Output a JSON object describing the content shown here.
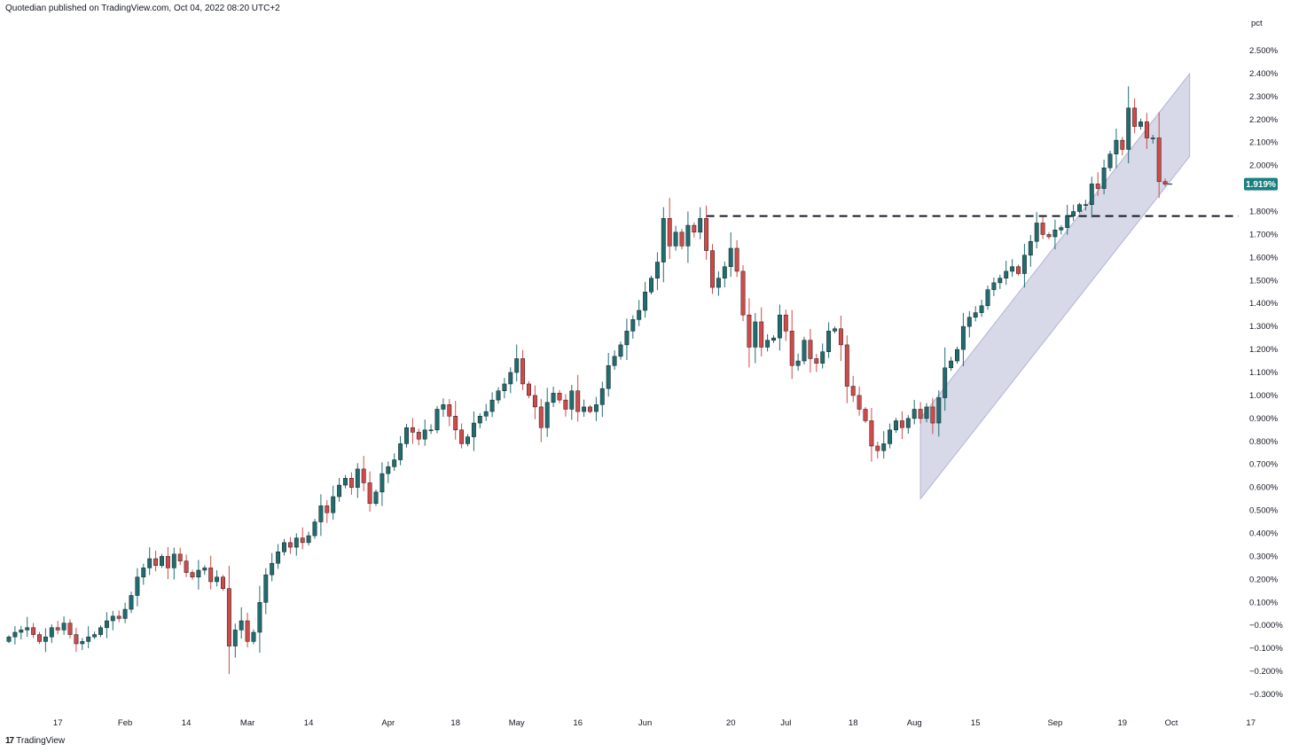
{
  "header": {
    "published": "Quotedian published on TradingView.com, Oct 04, 2022 08:20 UTC+2"
  },
  "footer": {
    "logo_mark": "17",
    "brand": "TradingView"
  },
  "chart_data": {
    "type": "candlestick",
    "y_unit_label": "pct",
    "y_range": [
      -0.35,
      2.62
    ],
    "y_ticks": [
      2.5,
      2.4,
      2.3,
      2.2,
      2.1,
      2.0,
      1.8,
      1.7,
      1.6,
      1.5,
      1.4,
      1.3,
      1.2,
      1.1,
      1.0,
      0.9,
      0.8,
      0.7,
      0.6,
      0.5,
      0.4,
      0.3,
      0.2,
      0.1,
      0.0,
      -0.1,
      -0.2,
      -0.3
    ],
    "y_tick_labels": [
      "2.500%",
      "2.400%",
      "2.300%",
      "2.200%",
      "2.100%",
      "2.000%",
      "1.800%",
      "1.700%",
      "1.600%",
      "1.500%",
      "1.400%",
      "1.300%",
      "1.200%",
      "1.100%",
      "1.000%",
      "0.900%",
      "0.800%",
      "0.700%",
      "0.600%",
      "0.500%",
      "0.400%",
      "0.300%",
      "0.200%",
      "0.100%",
      "−0.000%",
      "−0.100%",
      "−0.200%",
      "−0.300%"
    ],
    "x_tick_labels": [
      {
        "label": "17",
        "bar": 8
      },
      {
        "label": "Feb",
        "bar": 19
      },
      {
        "label": "14",
        "bar": 29
      },
      {
        "label": "Mar",
        "bar": 39
      },
      {
        "label": "14",
        "bar": 49
      },
      {
        "label": "Apr",
        "bar": 62
      },
      {
        "label": "18",
        "bar": 73
      },
      {
        "label": "May",
        "bar": 83
      },
      {
        "label": "16",
        "bar": 93
      },
      {
        "label": "Jun",
        "bar": 104
      },
      {
        "label": "20",
        "bar": 118
      },
      {
        "label": "Jul",
        "bar": 127
      },
      {
        "label": "18",
        "bar": 138
      },
      {
        "label": "Aug",
        "bar": 148
      },
      {
        "label": "15",
        "bar": 158
      },
      {
        "label": "Sep",
        "bar": 171
      },
      {
        "label": "19",
        "bar": 182
      },
      {
        "label": "Oct",
        "bar": 190
      },
      {
        "label": "17",
        "bar": 203
      }
    ],
    "last_value_label": "1.919%",
    "last_value": 1.919,
    "colors": {
      "up": "#1f6d70",
      "down": "#d14a4a",
      "channel_fill": "#c9cbe0",
      "channel_line": "#b2b5d2",
      "badge": "#1a7f80"
    },
    "resistance_level": 1.78,
    "resistance_bars": [
      114,
      201
    ],
    "channel": {
      "start_bar": 149,
      "end_bar": 193,
      "upper_start": 0.9,
      "upper_end": 2.4,
      "lower_start": 0.55,
      "lower_end": 2.04
    },
    "series": [
      {
        "name": "",
        "closes": [
          -0.05,
          -0.03,
          -0.02,
          -0.01,
          -0.04,
          -0.07,
          -0.05,
          -0.01,
          -0.02,
          0.01,
          -0.04,
          -0.08,
          -0.07,
          -0.05,
          -0.04,
          -0.01,
          0.02,
          0.04,
          0.03,
          0.07,
          0.13,
          0.21,
          0.25,
          0.29,
          0.26,
          0.3,
          0.25,
          0.31,
          0.28,
          0.23,
          0.21,
          0.24,
          0.25,
          0.19,
          0.21,
          0.16,
          -0.09,
          -0.02,
          0.02,
          -0.07,
          -0.03,
          0.1,
          0.22,
          0.27,
          0.32,
          0.36,
          0.34,
          0.38,
          0.36,
          0.39,
          0.45,
          0.52,
          0.49,
          0.56,
          0.61,
          0.64,
          0.6,
          0.68,
          0.62,
          0.53,
          0.58,
          0.66,
          0.69,
          0.72,
          0.79,
          0.86,
          0.84,
          0.81,
          0.85,
          0.85,
          0.94,
          0.96,
          0.91,
          0.85,
          0.79,
          0.82,
          0.88,
          0.91,
          0.93,
          0.98,
          1.02,
          1.05,
          1.1,
          1.16,
          1.05,
          1.0,
          0.95,
          0.86,
          0.97,
          1.01,
          0.98,
          0.94,
          1.02,
          0.93,
          0.95,
          0.93,
          0.96,
          1.03,
          1.13,
          1.17,
          1.22,
          1.28,
          1.33,
          1.37,
          1.45,
          1.51,
          1.58,
          1.77,
          1.65,
          1.71,
          1.65,
          1.74,
          1.71,
          1.77,
          1.63,
          1.47,
          1.51,
          1.56,
          1.64,
          1.54,
          1.35,
          1.21,
          1.32,
          1.21,
          1.24,
          1.25,
          1.35,
          1.28,
          1.13,
          1.15,
          1.24,
          1.16,
          1.14,
          1.19,
          1.28,
          1.29,
          1.22,
          1.04,
          1.0,
          0.94,
          0.89,
          0.78,
          0.76,
          0.79,
          0.85,
          0.89,
          0.86,
          0.9,
          0.94,
          0.9,
          0.95,
          0.88,
          0.99,
          1.12,
          1.15,
          1.2,
          1.3,
          1.34,
          1.36,
          1.39,
          1.46,
          1.49,
          1.51,
          1.54,
          1.56,
          1.53,
          1.61,
          1.67,
          1.75,
          1.7,
          1.69,
          1.72,
          1.73,
          1.78,
          1.8,
          1.83,
          1.83,
          1.92,
          1.9,
          1.99,
          2.05,
          2.11,
          2.07,
          2.25,
          2.17,
          2.19,
          2.12,
          2.12,
          1.93,
          1.919
        ]
      }
    ]
  }
}
